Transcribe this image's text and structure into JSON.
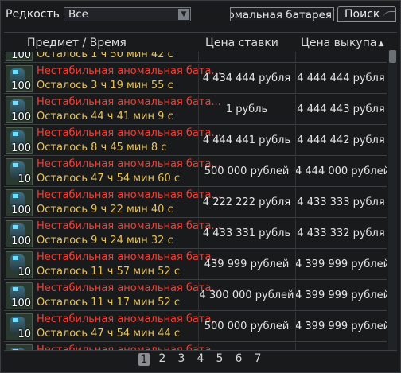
{
  "filters": {
    "rarity_label": "Редкость",
    "rarity_value": "Все",
    "search_value": "омальная батарея",
    "search_button": "Поиск"
  },
  "columns": {
    "item_time": "Предмет   /   Время",
    "bid": "Цена ставки",
    "buyout": "Цена выкупа"
  },
  "rows": [
    {
      "qty": "100",
      "name": "",
      "time": "Осталось 1 ч 50 мин 42 с",
      "bid": "",
      "buyout": ""
    },
    {
      "qty": "100",
      "name": "Нестабильная аномальная бата...",
      "time": "Осталось 3 ч 19 мин 55 с",
      "bid": "4 434 444 рубля",
      "buyout": "4 444 444 рубля"
    },
    {
      "qty": "100",
      "name": "Нестабильная аномальная бата...",
      "time": "Осталось 44 ч 41 мин 9 с",
      "bid": "1 рубль",
      "buyout": "4 444 443 рубля"
    },
    {
      "qty": "100",
      "name": "Нестабильная аномальная бата...",
      "time": "Осталось 8 ч 45 мин 8 с",
      "bid": "4 444 441 рубль",
      "buyout": "4 444 442 рубля"
    },
    {
      "qty": "10",
      "name": "Нестабильная аномальная бата...",
      "time": "Осталось 47 ч 54 мин 60 с",
      "bid": "500 000 рублей",
      "buyout": "4 444 000 рублей"
    },
    {
      "qty": "100",
      "name": "Нестабильная аномальная бата...",
      "time": "Осталось 9 ч 22 мин 40 с",
      "bid": "4 222 222 рубля",
      "buyout": "4 433 333 рубля"
    },
    {
      "qty": "100",
      "name": "Нестабильная аномальная бата...",
      "time": "Осталось 9 ч 24 мин 32 с",
      "bid": "4 433 331 рубль",
      "buyout": "4 433 332 рубля"
    },
    {
      "qty": "10",
      "name": "Нестабильная аномальная бата...",
      "time": "Осталось 11 ч 57 мин 52 с",
      "bid": "439 999 рублей",
      "buyout": "4 399 999 рублей"
    },
    {
      "qty": "100",
      "name": "Нестабильная аномальная бата...",
      "time": "Осталось 11 ч 17 мин 52 с",
      "bid": "4 300 000 рублей",
      "buyout": "4 399 999 рублей"
    },
    {
      "qty": "10",
      "name": "Нестабильная аномальная бата...",
      "time": "Осталось 47 ч 54 мин 44 с",
      "bid": "500 000 рублей",
      "buyout": "4 399 999 рублей"
    },
    {
      "qty": "",
      "name": "Нестабильная аномальная бата...",
      "time": "",
      "bid": "4 399 997 рублей",
      "buyout": "4 399 998 рублей"
    }
  ],
  "pager": {
    "pages": [
      "1",
      "2",
      "3",
      "4",
      "5",
      "6",
      "7"
    ],
    "current": "1"
  }
}
